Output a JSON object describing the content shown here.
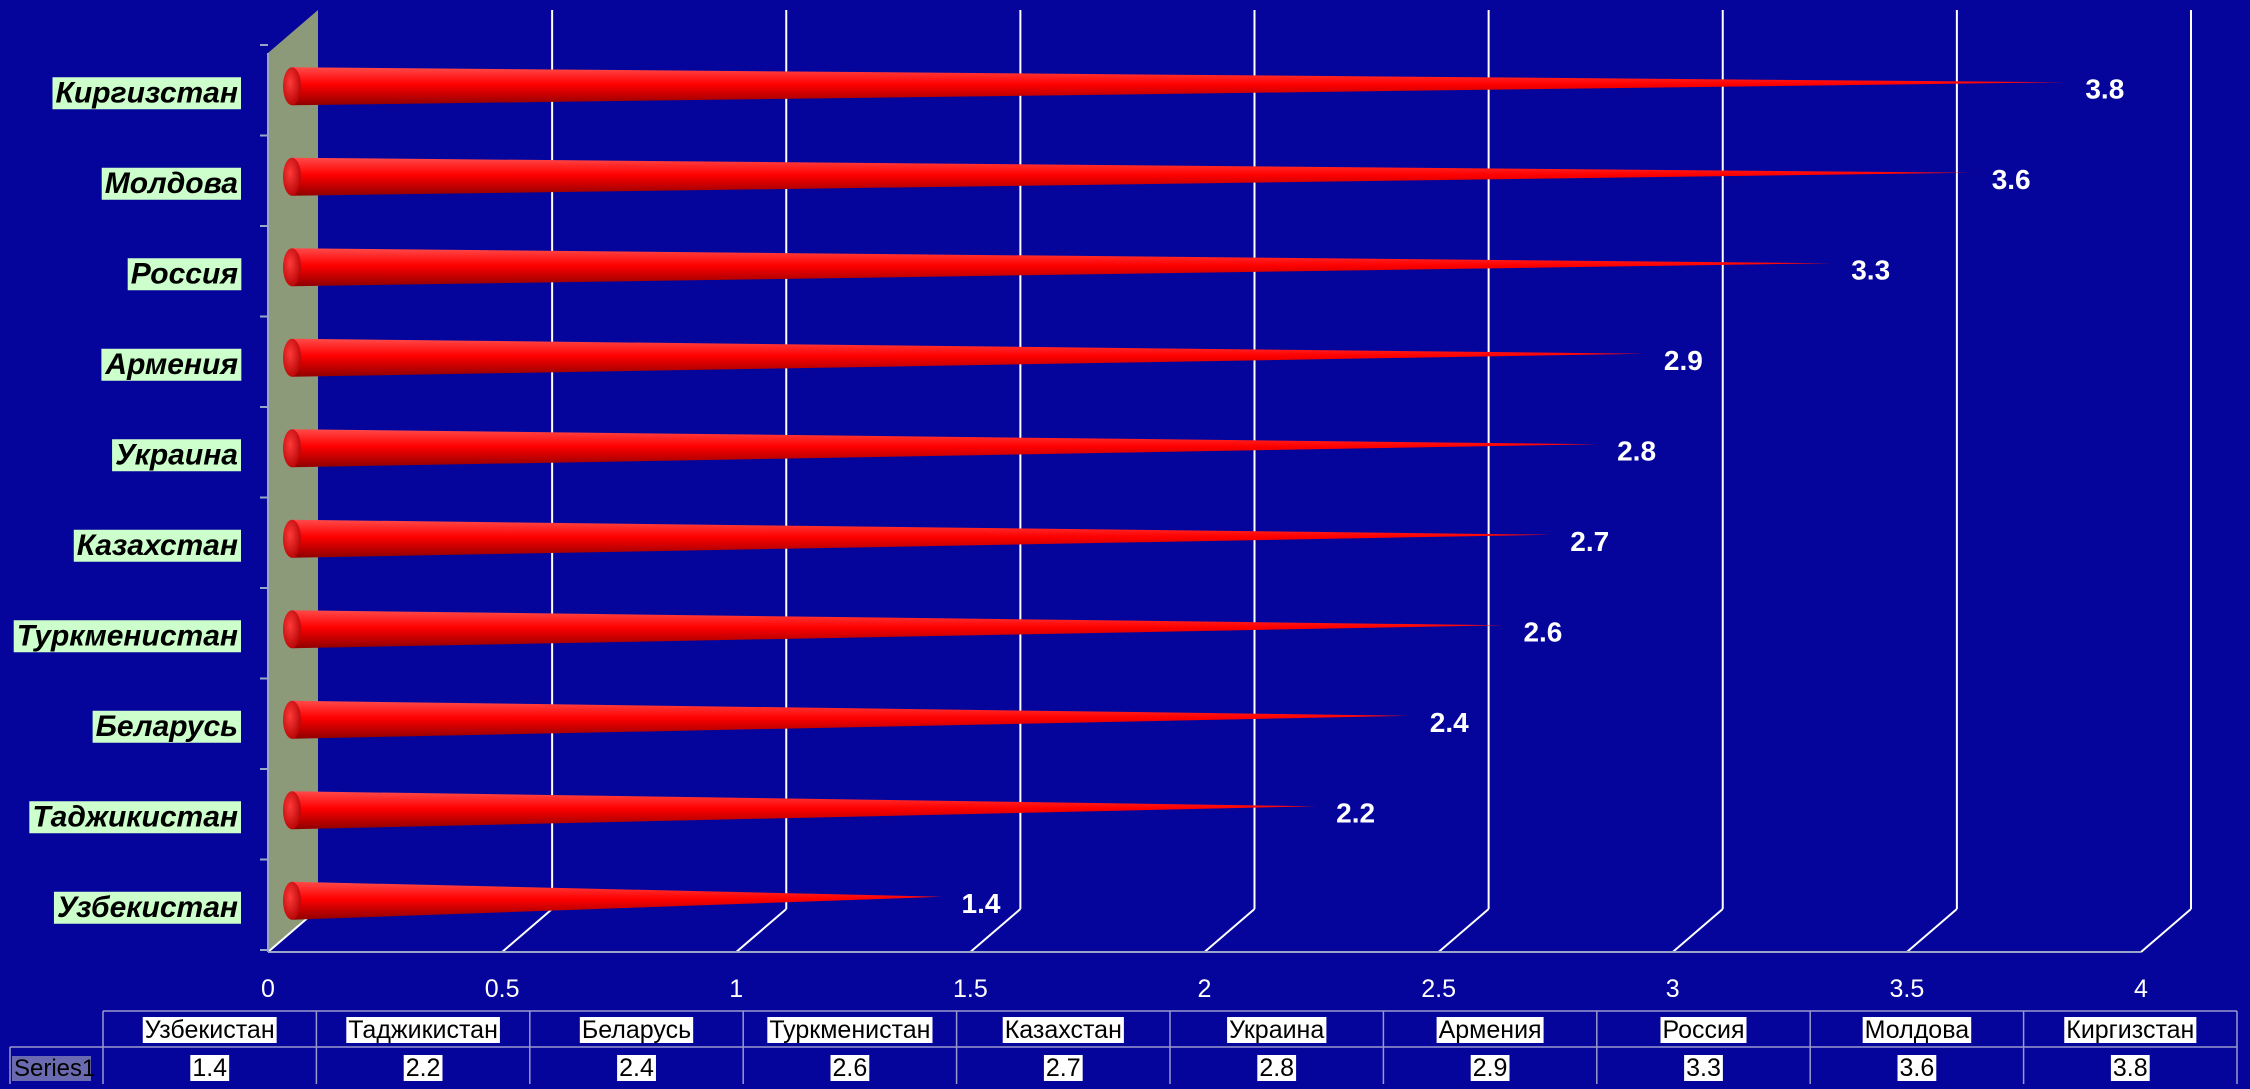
{
  "chart_data": {
    "type": "bar",
    "orientation": "horizontal",
    "style": "3d-cone",
    "categories": [
      "Узбекистан",
      "Таджикистан",
      "Беларусь",
      "Туркменистан",
      "Казахстан",
      "Украина",
      "Армения",
      "Россия",
      "Молдова",
      "Киргизстан"
    ],
    "series": [
      {
        "name": "Series1",
        "values": [
          1.4,
          2.2,
          2.4,
          2.6,
          2.7,
          2.8,
          2.9,
          3.3,
          3.6,
          3.8
        ]
      }
    ],
    "xlim": [
      0,
      4
    ],
    "xticks": [
      "0",
      "0.5",
      "1",
      "1.5",
      "2",
      "2.5",
      "3",
      "3.5",
      "4"
    ],
    "grid": true,
    "legend": "none",
    "data_labels": true,
    "data_table": true,
    "colors": {
      "background": "#05059b",
      "bar": "#ff0000",
      "bar_dark": "#9c0000",
      "wall": "#8c9a7a",
      "label_bg": "#ccffcc",
      "grid": "#ffffff",
      "table_border": "#9999cc"
    }
  }
}
